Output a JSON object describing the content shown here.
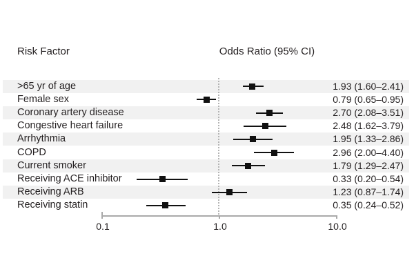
{
  "header": {
    "left_title": "Risk Factor",
    "right_title": "Odds Ratio (95% CI)"
  },
  "chart_data": {
    "type": "scatter",
    "subtype": "forest-plot",
    "scale": "log10",
    "xlabel": "",
    "ylabel": "",
    "axis": {
      "min": 0.1,
      "max": 10.0,
      "ticks": [
        0.1,
        1.0,
        10.0
      ],
      "tick_labels": [
        "0.1",
        "1.0",
        "10.0"
      ],
      "reference_line": 1.0,
      "grid": false
    },
    "rows": [
      {
        "label": ">65 yr of age",
        "or": 1.93,
        "lo": 1.6,
        "hi": 2.41,
        "display": "1.93 (1.60–2.41)",
        "shaded": true
      },
      {
        "label": "Female sex",
        "or": 0.79,
        "lo": 0.65,
        "hi": 0.95,
        "display": "0.79 (0.65–0.95)",
        "shaded": false
      },
      {
        "label": "Coronary artery disease",
        "or": 2.7,
        "lo": 2.08,
        "hi": 3.51,
        "display": "2.70 (2.08–3.51)",
        "shaded": true
      },
      {
        "label": "Congestive heart failure",
        "or": 2.48,
        "lo": 1.62,
        "hi": 3.79,
        "display": "2.48 (1.62–3.79)",
        "shaded": false
      },
      {
        "label": "Arrhythmia",
        "or": 1.95,
        "lo": 1.33,
        "hi": 2.86,
        "display": "1.95 (1.33–2.86)",
        "shaded": true
      },
      {
        "label": "COPD",
        "or": 2.96,
        "lo": 2.0,
        "hi": 4.4,
        "display": "2.96 (2.00–4.40)",
        "shaded": false
      },
      {
        "label": "Current smoker",
        "or": 1.79,
        "lo": 1.29,
        "hi": 2.47,
        "display": "1.79 (1.29–2.47)",
        "shaded": true
      },
      {
        "label": "Receiving ACE inhibitor",
        "or": 0.33,
        "lo": 0.2,
        "hi": 0.54,
        "display": "0.33 (0.20–0.54)",
        "shaded": false
      },
      {
        "label": "Receiving ARB",
        "or": 1.23,
        "lo": 0.87,
        "hi": 1.74,
        "display": "1.23 (0.87–1.74)",
        "shaded": true
      },
      {
        "label": "Receiving statin",
        "or": 0.35,
        "lo": 0.24,
        "hi": 0.52,
        "display": "0.35 (0.24–0.52)",
        "shaded": false
      }
    ]
  },
  "colors": {
    "band": "#f1f1f1",
    "marker": "#111111",
    "axis": "#a9a9a9",
    "reference_line": "#b3b3b3",
    "text": "#231f20"
  }
}
